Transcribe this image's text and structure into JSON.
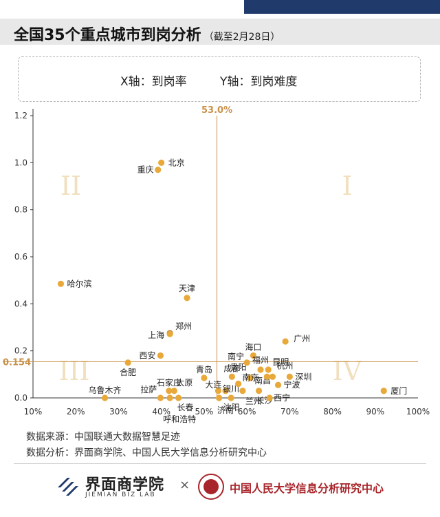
{
  "header": {
    "title": "全国35个重点城市到岗分析",
    "subtitle": "（截至2月28日）"
  },
  "legend": {
    "x_label": "X轴：到岗率",
    "y_label": "Y轴：到岗难度"
  },
  "colors": {
    "point": "#e8a93a",
    "reference": "#c9914a",
    "point_highlight": "#a9742c",
    "quadrant_label": "#f1e0bf",
    "top_bar": "#1f3a6b",
    "brand_red": "#a8252b"
  },
  "chart_data": {
    "type": "scatter",
    "title": "",
    "xlabel": "到岗率",
    "ylabel": "到岗难度",
    "xlim": [
      10,
      100
    ],
    "ylim": [
      0,
      1.2
    ],
    "x_ticks": [
      10,
      20,
      30,
      40,
      50,
      60,
      70,
      80,
      90,
      100
    ],
    "x_tick_labels": [
      "10%",
      "20%",
      "30%",
      "40%",
      "50%",
      "60%",
      "70%",
      "80%",
      "90%",
      "100%"
    ],
    "y_ticks": [
      0,
      0.2,
      0.4,
      0.6,
      0.8,
      1.0,
      1.2
    ],
    "y_tick_labels": [
      "0.0",
      "0.2",
      "0.4",
      "0.6",
      "0.8",
      "1.0",
      "1.2"
    ],
    "grid": false,
    "reference_lines": {
      "x": 53.0,
      "x_label": "53.0%",
      "y": 0.154,
      "y_label": "0.154"
    },
    "quadrant_labels": [
      "I",
      "II",
      "III",
      "IV"
    ],
    "points": [
      {
        "name": "北京",
        "x": 40.0,
        "y": 1.0
      },
      {
        "name": "重庆",
        "x": 39.2,
        "y": 0.97
      },
      {
        "name": "哈尔滨",
        "x": 16.5,
        "y": 0.485
      },
      {
        "name": "天津",
        "x": 46.0,
        "y": 0.425
      },
      {
        "name": "郑州",
        "x": 42.0,
        "y": 0.275
      },
      {
        "name": "上海",
        "x": 42.0,
        "y": 0.272
      },
      {
        "name": "西安",
        "x": 39.8,
        "y": 0.18
      },
      {
        "name": "合肥",
        "x": 32.2,
        "y": 0.15
      },
      {
        "name": "乌鲁木齐",
        "x": 26.8,
        "y": 0.0
      },
      {
        "name": "石家庄",
        "x": 41.8,
        "y": 0.03
      },
      {
        "name": "拉萨",
        "x": 39.8,
        "y": 0.0
      },
      {
        "name": "呼和浩特",
        "x": 42.0,
        "y": 0.0
      },
      {
        "name": "太原",
        "x": 43.0,
        "y": 0.03
      },
      {
        "name": "长春",
        "x": 44.0,
        "y": 0.0
      },
      {
        "name": "青岛",
        "x": 50.0,
        "y": 0.085
      },
      {
        "name": "大连",
        "x": 53.3,
        "y": 0.03
      },
      {
        "name": "沈阳",
        "x": 53.5,
        "y": 0.0
      },
      {
        "name": "济南",
        "x": 55.0,
        "y": 0.03
      },
      {
        "name": "成都",
        "x": 56.5,
        "y": 0.09
      },
      {
        "name": "银川",
        "x": 56.3,
        "y": 0.0
      },
      {
        "name": "贵阳",
        "x": 58.0,
        "y": 0.06
      },
      {
        "name": "兰州",
        "x": 59.0,
        "y": 0.03
      },
      {
        "name": "南宁",
        "x": 60.0,
        "y": 0.15
      },
      {
        "name": "南昌",
        "x": 60.8,
        "y": 0.085
      },
      {
        "name": "海口",
        "x": 61.5,
        "y": 0.18
      },
      {
        "name": "长沙",
        "x": 62.8,
        "y": 0.03
      },
      {
        "name": "福州",
        "x": 63.2,
        "y": 0.12
      },
      {
        "name": "南京",
        "x": 64.7,
        "y": 0.09
      },
      {
        "name": "昆明",
        "x": 65.0,
        "y": 0.12
      },
      {
        "name": "西宁",
        "x": 65.3,
        "y": 0.0
      },
      {
        "name": "宁波",
        "x": 67.3,
        "y": 0.055
      },
      {
        "name": "杭州",
        "x": 66.0,
        "y": 0.09
      },
      {
        "name": "深圳",
        "x": 70.0,
        "y": 0.09
      },
      {
        "name": "广州",
        "x": 69.0,
        "y": 0.24
      },
      {
        "name": "厦门",
        "x": 92.0,
        "y": 0.03
      }
    ]
  },
  "footer": {
    "source": "数据来源：中国联通大数据智慧足迹",
    "analysis": "数据分析：界面商学院、中国人民大学信息分析研究中心",
    "logo1_name": "界面商学院",
    "logo1_en": "JIEMIAN BIZ LAB",
    "times": "×",
    "logo2_name": "中国人民大学信息分析研究中心"
  }
}
